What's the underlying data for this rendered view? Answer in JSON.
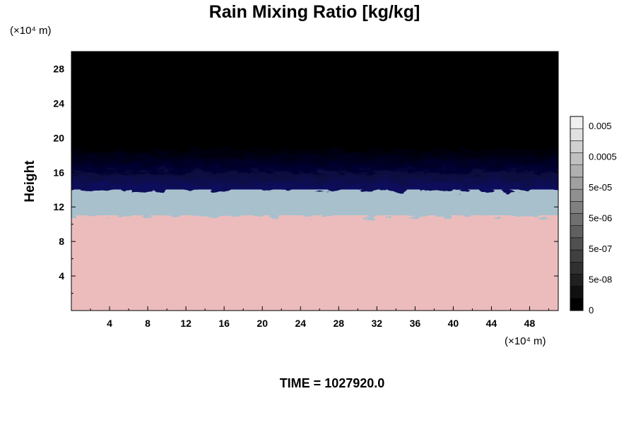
{
  "chart_data": {
    "type": "heatmap",
    "title": "Rain Mixing Ratio [kg/kg]",
    "xlabel": "",
    "ylabel": "Height",
    "x_unit": "(×10⁴ m)",
    "y_unit": "(×10⁴ m)",
    "xlim": [
      0,
      51
    ],
    "ylim": [
      0,
      30
    ],
    "x_ticks": [
      4,
      8,
      12,
      16,
      20,
      24,
      28,
      32,
      36,
      40,
      44,
      48
    ],
    "y_ticks": [
      4,
      8,
      12,
      16,
      20,
      24,
      28
    ],
    "footer": "TIME = 1027920.0",
    "layers": [
      {
        "name": "pink region",
        "color": "#ecbcbc",
        "top": 11.0
      },
      {
        "name": "grey-blue transition",
        "color": "#a8c0cc",
        "top": 14.0
      },
      {
        "name": "blue band",
        "color": "#1818d8",
        "top": 19.0
      },
      {
        "name": "black upper region",
        "color": "#000000",
        "top": 30.0
      }
    ],
    "colorbar": {
      "labels": [
        "0.005",
        "0.0005",
        "5e-05",
        "5e-06",
        "5e-07",
        "5e-08",
        "0"
      ],
      "levels": 16,
      "color_low": "#000000",
      "color_high": "#f0f0f0"
    }
  }
}
